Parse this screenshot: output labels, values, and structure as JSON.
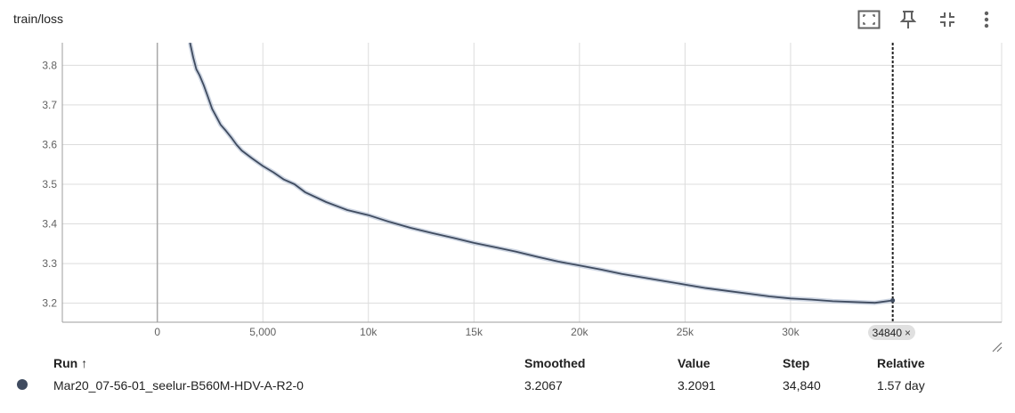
{
  "card": {
    "title": "train/loss"
  },
  "toolbar": {
    "icons": [
      "fit-domain-icon",
      "pin-icon",
      "collapse-icon",
      "more-vert-icon"
    ]
  },
  "chart_data": {
    "type": "line",
    "title": "train/loss",
    "xlabel": "",
    "ylabel": "",
    "xlim": [
      -4500,
      40000
    ],
    "ylim": [
      3.152,
      3.857
    ],
    "xticks": [
      0,
      5000,
      10000,
      15000,
      20000,
      25000,
      30000
    ],
    "xtick_labels": [
      "0",
      "5,000",
      "10k",
      "15k",
      "20k",
      "25k",
      "30k"
    ],
    "yticks": [
      3.2,
      3.3,
      3.4,
      3.5,
      3.6,
      3.7,
      3.8
    ],
    "ytick_labels": [
      "3.2",
      "3.3",
      "3.4",
      "3.5",
      "3.6",
      "3.7",
      "3.8"
    ],
    "grid": true,
    "series": [
      {
        "name": "Mar20_07-56-01_seelur-B560M-HDV-A-R2-0",
        "color": "#3f4b5f",
        "x": [
          1550,
          1700,
          1850,
          2000,
          2200,
          2400,
          2600,
          2800,
          3000,
          3250,
          3500,
          3750,
          4000,
          4500,
          5000,
          5500,
          6000,
          6500,
          7000,
          8000,
          9000,
          10000,
          11000,
          12000,
          13000,
          14000,
          15000,
          16000,
          17000,
          18000,
          19000,
          20000,
          21000,
          22000,
          23000,
          24000,
          25000,
          26000,
          27000,
          28000,
          29000,
          30000,
          31000,
          32000,
          33000,
          34000,
          34840
        ],
        "values": [
          3.857,
          3.82,
          3.79,
          3.775,
          3.75,
          3.72,
          3.69,
          3.67,
          3.65,
          3.635,
          3.618,
          3.6,
          3.585,
          3.565,
          3.546,
          3.53,
          3.512,
          3.5,
          3.48,
          3.455,
          3.435,
          3.422,
          3.405,
          3.39,
          3.377,
          3.365,
          3.352,
          3.341,
          3.33,
          3.317,
          3.305,
          3.295,
          3.285,
          3.274,
          3.265,
          3.256,
          3.247,
          3.238,
          3.231,
          3.224,
          3.217,
          3.212,
          3.209,
          3.205,
          3.203,
          3.201,
          3.207
        ]
      }
    ],
    "cursor_step": 34840
  },
  "step_chip": {
    "label": "34840",
    "close": "×"
  },
  "table": {
    "headers": {
      "run": "Run ↑",
      "smoothed": "Smoothed",
      "value": "Value",
      "step": "Step",
      "relative": "Relative"
    },
    "rows": [
      {
        "color": "#3f4b5f",
        "run": "Mar20_07-56-01_seelur-B560M-HDV-A-R2-0",
        "smoothed": "3.2067",
        "value": "3.2091",
        "step": "34,840",
        "relative": "1.57 day"
      }
    ]
  }
}
